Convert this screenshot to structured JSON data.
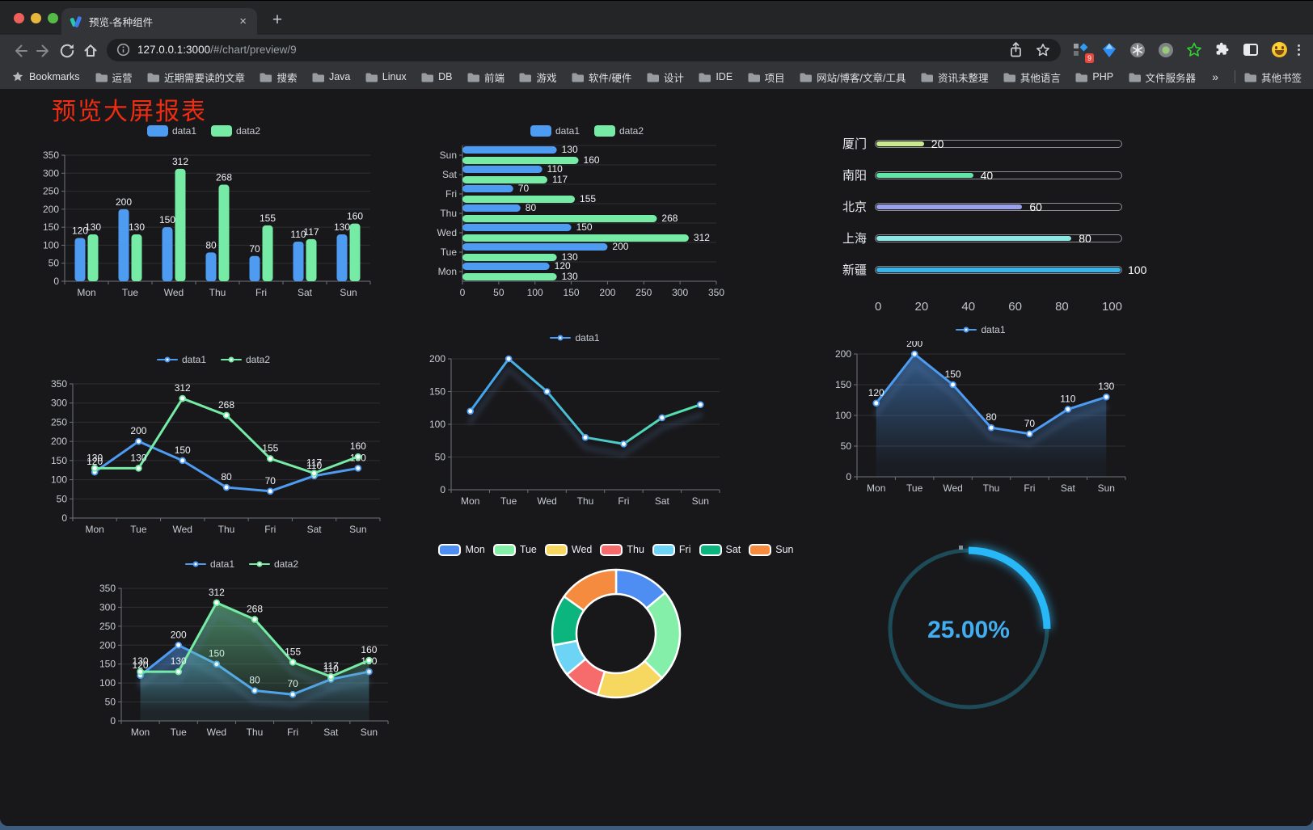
{
  "browser": {
    "tab_title": "预览-各种组件",
    "url_host": "127.0.0.1:3000",
    "url_path": "/#/chart/preview/9",
    "extension_badge": "9",
    "bookmarks_label": "Bookmarks",
    "bookmarks": [
      "运营",
      "近期需要读的文章",
      "搜索",
      "Java",
      "Linux",
      "DB",
      "前端",
      "游戏",
      "软件/硬件",
      "设计",
      "IDE",
      "项目",
      "网站/博客/文章/工具",
      "资讯未整理",
      "其他语言",
      "PHP",
      "文件服务器"
    ],
    "bookmarks_overflow": "»",
    "other_bookmarks": "其他书签",
    "icons": {
      "new_tab": "+",
      "close_tab": "×"
    }
  },
  "page": {
    "title": "预览大屏报表",
    "title_color": "#ee2c10"
  },
  "chart_data": [
    {
      "id": "bar1",
      "type": "bar",
      "categories": [
        "Mon",
        "Tue",
        "Wed",
        "Thu",
        "Fri",
        "Sat",
        "Sun"
      ],
      "series": [
        {
          "name": "data1",
          "color": "#4e9bf2",
          "values": [
            120,
            200,
            150,
            80,
            70,
            110,
            130
          ]
        },
        {
          "name": "data2",
          "color": "#76eba6",
          "values": [
            130,
            130,
            312,
            268,
            155,
            117,
            160
          ]
        }
      ],
      "ylim": [
        0,
        350
      ],
      "ytick_step": 50,
      "legend_position": "top",
      "value_labels": true,
      "grid": true
    },
    {
      "id": "bar2",
      "type": "bar-horizontal",
      "categories": [
        "Mon",
        "Tue",
        "Wed",
        "Thu",
        "Fri",
        "Sat",
        "Sun"
      ],
      "category_order_top_to_bottom": [
        "Sun",
        "Sat",
        "Fri",
        "Thu",
        "Wed",
        "Tue",
        "Mon"
      ],
      "series": [
        {
          "name": "data1",
          "color": "#4e9bf2",
          "values": [
            120,
            200,
            150,
            80,
            70,
            110,
            130
          ]
        },
        {
          "name": "data2",
          "color": "#76eba6",
          "values": [
            130,
            130,
            312,
            268,
            155,
            117,
            160
          ]
        }
      ],
      "xlim": [
        0,
        350
      ],
      "xtick_step": 50,
      "legend_position": "top",
      "value_labels": true,
      "grid": true
    },
    {
      "id": "progress",
      "type": "progress-bars",
      "xlim": [
        0,
        100
      ],
      "xticks": [
        0,
        20,
        40,
        60,
        80,
        100
      ],
      "rows": [
        {
          "label": "厦门",
          "value": 20,
          "color": "#c9e98c"
        },
        {
          "label": "南阳",
          "value": 40,
          "color": "#5fe6a8"
        },
        {
          "label": "北京",
          "value": 60,
          "color": "#9ba0ec"
        },
        {
          "label": "上海",
          "value": 80,
          "color": "#8ce8e2"
        },
        {
          "label": "新疆",
          "value": 100,
          "color": "#35b5e9"
        }
      ]
    },
    {
      "id": "line1",
      "type": "line",
      "categories": [
        "Mon",
        "Tue",
        "Wed",
        "Thu",
        "Fri",
        "Sat",
        "Sun"
      ],
      "series": [
        {
          "name": "data1",
          "color": "#4e9bf2",
          "values": [
            120,
            200,
            150,
            80,
            70,
            110,
            130
          ]
        },
        {
          "name": "data2",
          "color": "#76eba6",
          "values": [
            130,
            130,
            312,
            268,
            155,
            117,
            160
          ]
        }
      ],
      "ylim": [
        0,
        350
      ],
      "ytick_step": 50,
      "legend_position": "top",
      "value_labels": true,
      "markers": true,
      "grid": true
    },
    {
      "id": "line2",
      "type": "line",
      "categories": [
        "Mon",
        "Tue",
        "Wed",
        "Thu",
        "Fri",
        "Sat",
        "Sun"
      ],
      "series": [
        {
          "name": "data1",
          "color": "#4e9bf2",
          "gradient": [
            "#3f9bf6",
            "#57eba3"
          ],
          "values": [
            120,
            200,
            150,
            80,
            70,
            110,
            130
          ]
        }
      ],
      "ylim": [
        0,
        200
      ],
      "ytick_step": 50,
      "legend_position": "top",
      "value_labels": false,
      "markers": true,
      "shadow": true,
      "grid": true
    },
    {
      "id": "line3",
      "type": "line",
      "categories": [
        "Mon",
        "Tue",
        "Wed",
        "Thu",
        "Fri",
        "Sat",
        "Sun"
      ],
      "series": [
        {
          "name": "data1",
          "color": "#4e9bf2",
          "area": true,
          "values": [
            120,
            200,
            150,
            80,
            70,
            110,
            130
          ]
        }
      ],
      "ylim": [
        0,
        200
      ],
      "ytick_step": 50,
      "legend_position": "top",
      "value_labels": true,
      "markers": true,
      "shadow": true,
      "grid": true
    },
    {
      "id": "line4",
      "type": "line",
      "categories": [
        "Mon",
        "Tue",
        "Wed",
        "Thu",
        "Fri",
        "Sat",
        "Sun"
      ],
      "series": [
        {
          "name": "data1",
          "color": "#4e9bf2",
          "area": true,
          "values": [
            120,
            200,
            150,
            80,
            70,
            110,
            130
          ]
        },
        {
          "name": "data2",
          "color": "#76eba6",
          "area": true,
          "values": [
            130,
            130,
            312,
            268,
            155,
            117,
            160
          ]
        }
      ],
      "ylim": [
        0,
        350
      ],
      "ytick_step": 50,
      "legend_position": "top",
      "value_labels": true,
      "markers": true,
      "shadow": true,
      "grid": true
    },
    {
      "id": "donut",
      "type": "donut",
      "legend_position": "top",
      "items": [
        {
          "label": "Mon",
          "value": 120,
          "color": "#4e8ef2"
        },
        {
          "label": "Tue",
          "value": 200,
          "color": "#84efa9"
        },
        {
          "label": "Wed",
          "value": 150,
          "color": "#f6d75f"
        },
        {
          "label": "Thu",
          "value": 80,
          "color": "#f66c6c"
        },
        {
          "label": "Fri",
          "value": 70,
          "color": "#6ed4f6"
        },
        {
          "label": "Sat",
          "value": 110,
          "color": "#0db57e"
        },
        {
          "label": "Sun",
          "value": 130,
          "color": "#f58b3f"
        }
      ]
    },
    {
      "id": "gauge",
      "type": "gauge",
      "value_percent": 25,
      "label": "25.00%",
      "arc_color": "#29b8f7",
      "track_color": "#1d4b58",
      "text_color": "#42aef2"
    }
  ]
}
